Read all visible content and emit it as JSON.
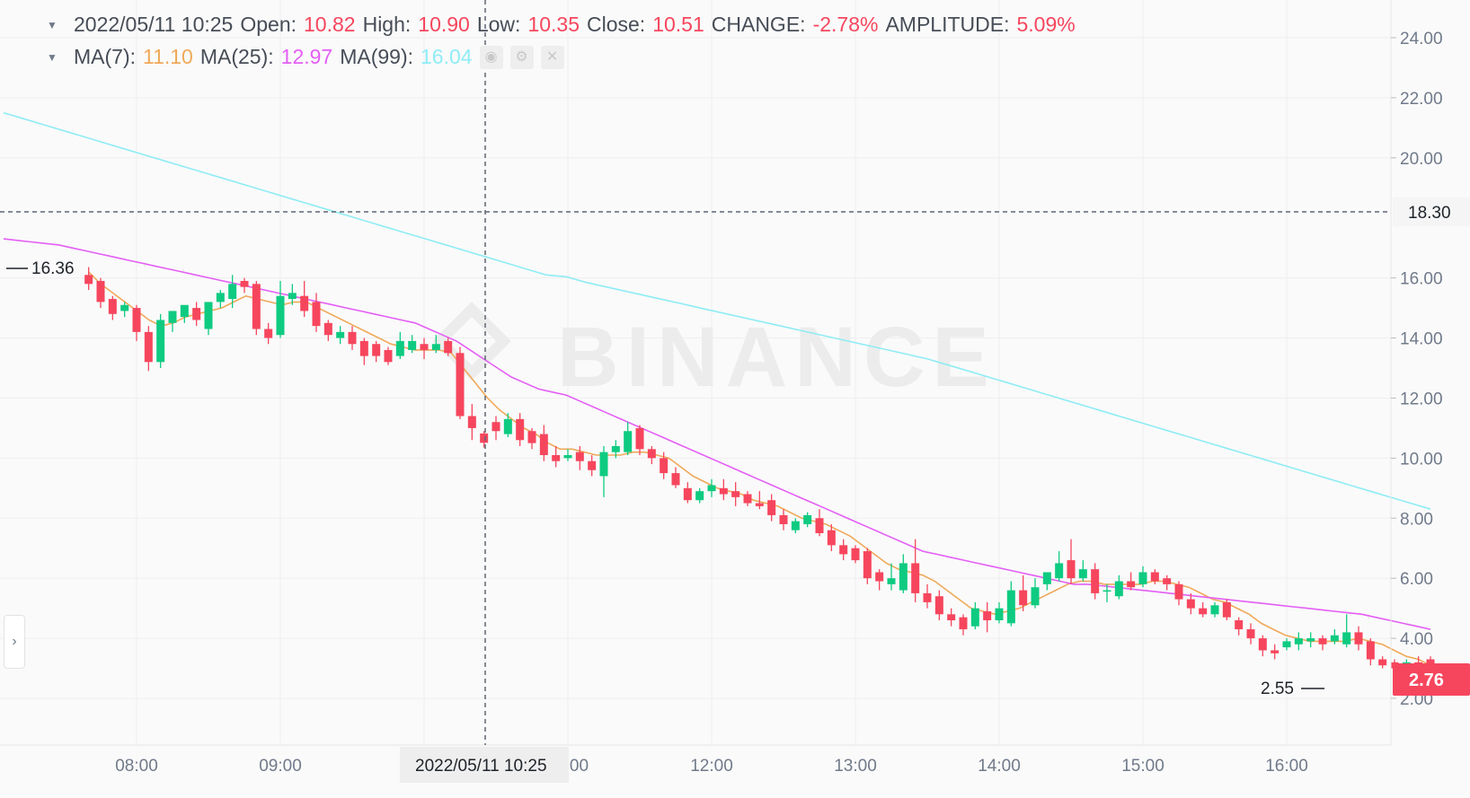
{
  "legend": {
    "datetime": "2022/05/11 10:25",
    "open_label": "Open:",
    "open": "10.82",
    "high_label": "High:",
    "high": "10.90",
    "low_label": "Low:",
    "low": "10.35",
    "close_label": "Close:",
    "close": "10.51",
    "change_label": "CHANGE:",
    "change": "-2.78%",
    "amplitude_label": "AMPLITUDE:",
    "amplitude": "5.09%",
    "ma7_label": "MA(7):",
    "ma7": "11.10",
    "ma25_label": "MA(25):",
    "ma25": "12.97",
    "ma99_label": "MA(99):",
    "ma99": "16.04"
  },
  "watermark": "BINANCE",
  "crosshair": {
    "price_label": "18.30",
    "time_label": "2022/05/11 10:25"
  },
  "last_price_label": "2.76",
  "high_marker": "16.36",
  "low_marker": "2.55",
  "colors": {
    "up": "#0ecb81",
    "down": "#f6465d",
    "ma7": "#f0a95a",
    "ma25": "#e45ef5",
    "ma99": "#8fecf5",
    "grid": "#efefef",
    "axis_text": "#707a8a",
    "last_price_bg": "#f6465d"
  },
  "chart_data": {
    "type": "candlestick",
    "title": "",
    "y_ticks": [
      "2.00",
      "4.00",
      "6.00",
      "8.00",
      "10.00",
      "12.00",
      "14.00",
      "16.00",
      "20.00",
      "22.00",
      "24.00"
    ],
    "x_ticks": [
      "08:00",
      "09:00",
      "11:00",
      "12:00",
      "13:00",
      "14:00",
      "15:00",
      "16:00"
    ],
    "ylim": [
      0.6,
      25.4
    ],
    "interval_minutes": 5,
    "candles": [
      {
        "t": "07:40",
        "o": 16.1,
        "h": 16.36,
        "c": 15.8,
        "l": 15.6
      },
      {
        "t": "07:45",
        "o": 15.9,
        "h": 16.0,
        "c": 15.2,
        "l": 15.0
      },
      {
        "t": "07:50",
        "o": 15.3,
        "h": 15.4,
        "c": 14.8,
        "l": 14.6
      },
      {
        "t": "07:55",
        "o": 14.9,
        "h": 15.2,
        "c": 15.1,
        "l": 14.7
      },
      {
        "t": "08:00",
        "o": 15.0,
        "h": 15.1,
        "c": 14.2,
        "l": 13.9
      },
      {
        "t": "08:05",
        "o": 14.2,
        "h": 14.4,
        "c": 13.2,
        "l": 12.9
      },
      {
        "t": "08:10",
        "o": 13.2,
        "h": 14.8,
        "c": 14.6,
        "l": 13.0
      },
      {
        "t": "08:15",
        "o": 14.5,
        "h": 14.9,
        "c": 14.9,
        "l": 14.2
      },
      {
        "t": "08:20",
        "o": 14.7,
        "h": 15.0,
        "c": 15.1,
        "l": 14.5
      },
      {
        "t": "08:25",
        "o": 15.0,
        "h": 15.2,
        "c": 14.6,
        "l": 14.4
      },
      {
        "t": "08:30",
        "o": 14.3,
        "h": 15.1,
        "c": 15.2,
        "l": 14.1
      },
      {
        "t": "08:35",
        "o": 15.2,
        "h": 15.6,
        "c": 15.5,
        "l": 15.0
      },
      {
        "t": "08:40",
        "o": 15.3,
        "h": 16.1,
        "c": 15.8,
        "l": 15.0
      },
      {
        "t": "08:45",
        "o": 15.9,
        "h": 16.0,
        "c": 15.7,
        "l": 15.5
      },
      {
        "t": "08:50",
        "o": 15.8,
        "h": 15.9,
        "c": 14.3,
        "l": 14.1
      },
      {
        "t": "08:55",
        "o": 14.3,
        "h": 14.5,
        "c": 14.0,
        "l": 13.8
      },
      {
        "t": "09:00",
        "o": 14.1,
        "h": 15.9,
        "c": 15.4,
        "l": 14.0
      },
      {
        "t": "09:05",
        "o": 15.3,
        "h": 15.8,
        "c": 15.5,
        "l": 15.1
      },
      {
        "t": "09:10",
        "o": 15.4,
        "h": 15.9,
        "c": 14.9,
        "l": 14.7
      },
      {
        "t": "09:15",
        "o": 15.2,
        "h": 15.5,
        "c": 14.4,
        "l": 14.2
      },
      {
        "t": "09:20",
        "o": 14.5,
        "h": 14.6,
        "c": 14.1,
        "l": 13.9
      },
      {
        "t": "09:25",
        "o": 14.0,
        "h": 14.4,
        "c": 14.2,
        "l": 13.8
      },
      {
        "t": "09:30",
        "o": 14.2,
        "h": 14.4,
        "c": 13.8,
        "l": 13.6
      },
      {
        "t": "09:35",
        "o": 13.9,
        "h": 14.0,
        "c": 13.4,
        "l": 13.1
      },
      {
        "t": "09:40",
        "o": 13.8,
        "h": 13.9,
        "c": 13.4,
        "l": 13.2
      },
      {
        "t": "09:45",
        "o": 13.6,
        "h": 13.7,
        "c": 13.2,
        "l": 13.1
      },
      {
        "t": "09:50",
        "o": 13.4,
        "h": 14.2,
        "c": 13.9,
        "l": 13.3
      },
      {
        "t": "09:55",
        "o": 13.6,
        "h": 14.1,
        "c": 13.9,
        "l": 13.5
      },
      {
        "t": "10:00",
        "o": 13.8,
        "h": 14.0,
        "c": 13.6,
        "l": 13.3
      },
      {
        "t": "10:05",
        "o": 13.6,
        "h": 14.1,
        "c": 13.8,
        "l": 13.5
      },
      {
        "t": "10:10",
        "o": 13.9,
        "h": 14.0,
        "c": 13.5,
        "l": 13.4
      },
      {
        "t": "10:15",
        "o": 13.5,
        "h": 13.7,
        "c": 11.4,
        "l": 11.3
      },
      {
        "t": "10:20",
        "o": 11.4,
        "h": 11.8,
        "c": 11.0,
        "l": 10.6
      },
      {
        "t": "10:25",
        "o": 10.82,
        "h": 10.9,
        "c": 10.51,
        "l": 10.35
      },
      {
        "t": "10:30",
        "o": 11.2,
        "h": 11.4,
        "c": 10.9,
        "l": 10.6
      },
      {
        "t": "10:35",
        "o": 10.8,
        "h": 11.5,
        "c": 11.3,
        "l": 10.7
      },
      {
        "t": "10:40",
        "o": 11.3,
        "h": 11.5,
        "c": 10.6,
        "l": 10.4
      },
      {
        "t": "10:45",
        "o": 10.9,
        "h": 11.0,
        "c": 10.5,
        "l": 10.3
      },
      {
        "t": "10:50",
        "o": 10.8,
        "h": 11.1,
        "c": 10.1,
        "l": 9.9
      },
      {
        "t": "10:55",
        "o": 10.1,
        "h": 10.4,
        "c": 9.9,
        "l": 9.7
      },
      {
        "t": "11:00",
        "o": 10.0,
        "h": 10.3,
        "c": 10.1,
        "l": 9.9
      },
      {
        "t": "11:05",
        "o": 10.2,
        "h": 10.4,
        "c": 9.9,
        "l": 9.6
      },
      {
        "t": "11:10",
        "o": 9.9,
        "h": 10.1,
        "c": 9.6,
        "l": 9.4
      },
      {
        "t": "11:15",
        "o": 9.4,
        "h": 10.4,
        "c": 10.2,
        "l": 8.7
      },
      {
        "t": "11:20",
        "o": 10.2,
        "h": 10.6,
        "c": 10.4,
        "l": 10.0
      },
      {
        "t": "11:25",
        "o": 10.2,
        "h": 11.2,
        "c": 10.9,
        "l": 10.1
      },
      {
        "t": "11:30",
        "o": 11.0,
        "h": 11.1,
        "c": 10.3,
        "l": 10.1
      },
      {
        "t": "11:35",
        "o": 10.3,
        "h": 10.4,
        "c": 10.0,
        "l": 9.8
      },
      {
        "t": "11:40",
        "o": 10.0,
        "h": 10.2,
        "c": 9.5,
        "l": 9.3
      },
      {
        "t": "11:45",
        "o": 9.5,
        "h": 9.7,
        "c": 9.1,
        "l": 9.0
      },
      {
        "t": "11:50",
        "o": 9.0,
        "h": 9.2,
        "c": 8.6,
        "l": 8.5
      },
      {
        "t": "11:55",
        "o": 8.6,
        "h": 9.0,
        "c": 8.9,
        "l": 8.5
      },
      {
        "t": "12:00",
        "o": 8.9,
        "h": 9.3,
        "c": 9.1,
        "l": 8.7
      },
      {
        "t": "12:05",
        "o": 9.0,
        "h": 9.3,
        "c": 8.8,
        "l": 8.6
      },
      {
        "t": "12:10",
        "o": 8.9,
        "h": 9.2,
        "c": 8.7,
        "l": 8.4
      },
      {
        "t": "12:15",
        "o": 8.8,
        "h": 8.9,
        "c": 8.5,
        "l": 8.4
      },
      {
        "t": "12:20",
        "o": 8.5,
        "h": 8.9,
        "c": 8.4,
        "l": 8.3
      },
      {
        "t": "12:25",
        "o": 8.6,
        "h": 8.8,
        "c": 8.1,
        "l": 7.9
      },
      {
        "t": "12:30",
        "o": 8.1,
        "h": 8.3,
        "c": 7.8,
        "l": 7.6
      },
      {
        "t": "12:35",
        "o": 7.6,
        "h": 8.0,
        "c": 7.9,
        "l": 7.5
      },
      {
        "t": "12:40",
        "o": 7.8,
        "h": 8.2,
        "c": 8.1,
        "l": 7.7
      },
      {
        "t": "12:45",
        "o": 8.0,
        "h": 8.3,
        "c": 7.5,
        "l": 7.4
      },
      {
        "t": "12:50",
        "o": 7.6,
        "h": 7.8,
        "c": 7.1,
        "l": 6.9
      },
      {
        "t": "12:55",
        "o": 7.1,
        "h": 7.3,
        "c": 6.8,
        "l": 6.6
      },
      {
        "t": "13:00",
        "o": 7.0,
        "h": 7.1,
        "c": 6.6,
        "l": 6.5
      },
      {
        "t": "13:05",
        "o": 6.9,
        "h": 7.0,
        "c": 6.0,
        "l": 5.8
      },
      {
        "t": "13:10",
        "o": 6.2,
        "h": 6.3,
        "c": 5.9,
        "l": 5.6
      },
      {
        "t": "13:15",
        "o": 5.8,
        "h": 6.5,
        "c": 6.0,
        "l": 5.6
      },
      {
        "t": "13:20",
        "o": 5.6,
        "h": 6.8,
        "c": 6.5,
        "l": 5.5
      },
      {
        "t": "13:25",
        "o": 6.5,
        "h": 7.3,
        "c": 5.5,
        "l": 5.2
      },
      {
        "t": "13:30",
        "o": 5.5,
        "h": 5.8,
        "c": 5.2,
        "l": 5.0
      },
      {
        "t": "13:35",
        "o": 5.4,
        "h": 5.6,
        "c": 4.8,
        "l": 4.6
      },
      {
        "t": "13:40",
        "o": 4.8,
        "h": 5.0,
        "c": 4.6,
        "l": 4.4
      },
      {
        "t": "13:45",
        "o": 4.7,
        "h": 4.8,
        "c": 4.3,
        "l": 4.1
      },
      {
        "t": "13:50",
        "o": 4.4,
        "h": 5.2,
        "c": 5.0,
        "l": 4.3
      },
      {
        "t": "13:55",
        "o": 4.9,
        "h": 5.2,
        "c": 4.6,
        "l": 4.2
      },
      {
        "t": "14:00",
        "o": 4.6,
        "h": 5.2,
        "c": 5.0,
        "l": 4.5
      },
      {
        "t": "14:05",
        "o": 4.5,
        "h": 5.9,
        "c": 5.6,
        "l": 4.4
      },
      {
        "t": "14:10",
        "o": 5.6,
        "h": 6.1,
        "c": 5.1,
        "l": 4.9
      },
      {
        "t": "14:15",
        "o": 5.1,
        "h": 6.0,
        "c": 5.7,
        "l": 5.0
      },
      {
        "t": "14:20",
        "o": 5.8,
        "h": 6.2,
        "c": 6.2,
        "l": 5.6
      },
      {
        "t": "14:25",
        "o": 6.0,
        "h": 6.9,
        "c": 6.5,
        "l": 5.9
      },
      {
        "t": "14:30",
        "o": 6.6,
        "h": 7.3,
        "c": 6.0,
        "l": 5.8
      },
      {
        "t": "14:35",
        "o": 6.0,
        "h": 6.6,
        "c": 6.3,
        "l": 5.9
      },
      {
        "t": "14:40",
        "o": 6.3,
        "h": 6.5,
        "c": 5.5,
        "l": 5.3
      },
      {
        "t": "14:45",
        "o": 5.6,
        "h": 5.8,
        "c": 5.6,
        "l": 5.2
      },
      {
        "t": "14:50",
        "o": 5.4,
        "h": 6.1,
        "c": 5.9,
        "l": 5.3
      },
      {
        "t": "14:55",
        "o": 5.9,
        "h": 6.2,
        "c": 5.7,
        "l": 5.6
      },
      {
        "t": "15:00",
        "o": 5.8,
        "h": 6.4,
        "c": 6.2,
        "l": 5.7
      },
      {
        "t": "15:05",
        "o": 6.2,
        "h": 6.3,
        "c": 5.9,
        "l": 5.8
      },
      {
        "t": "15:10",
        "o": 6.0,
        "h": 6.1,
        "c": 5.8,
        "l": 5.6
      },
      {
        "t": "15:15",
        "o": 5.8,
        "h": 5.9,
        "c": 5.3,
        "l": 5.1
      },
      {
        "t": "15:20",
        "o": 5.3,
        "h": 5.5,
        "c": 5.0,
        "l": 4.8
      },
      {
        "t": "15:25",
        "o": 5.0,
        "h": 5.2,
        "c": 4.8,
        "l": 4.7
      },
      {
        "t": "15:30",
        "o": 4.8,
        "h": 5.2,
        "c": 5.1,
        "l": 4.7
      },
      {
        "t": "15:35",
        "o": 5.2,
        "h": 5.3,
        "c": 4.7,
        "l": 4.6
      },
      {
        "t": "15:40",
        "o": 4.6,
        "h": 4.7,
        "c": 4.3,
        "l": 4.1
      },
      {
        "t": "15:45",
        "o": 4.3,
        "h": 4.5,
        "c": 4.0,
        "l": 3.8
      },
      {
        "t": "15:50",
        "o": 4.0,
        "h": 4.1,
        "c": 3.6,
        "l": 3.4
      },
      {
        "t": "15:55",
        "o": 3.6,
        "h": 3.8,
        "c": 3.5,
        "l": 3.3
      },
      {
        "t": "16:00",
        "o": 3.7,
        "h": 4.0,
        "c": 3.9,
        "l": 3.6
      },
      {
        "t": "16:05",
        "o": 3.8,
        "h": 4.2,
        "c": 4.0,
        "l": 3.6
      },
      {
        "t": "16:10",
        "o": 3.9,
        "h": 4.2,
        "c": 4.0,
        "l": 3.7
      },
      {
        "t": "16:15",
        "o": 4.0,
        "h": 4.1,
        "c": 3.8,
        "l": 3.6
      },
      {
        "t": "16:20",
        "o": 3.9,
        "h": 4.3,
        "c": 4.1,
        "l": 3.8
      },
      {
        "t": "16:25",
        "o": 3.8,
        "h": 4.8,
        "c": 4.2,
        "l": 3.7
      },
      {
        "t": "16:30",
        "o": 4.2,
        "h": 4.4,
        "c": 3.8,
        "l": 3.6
      },
      {
        "t": "16:35",
        "o": 3.9,
        "h": 4.0,
        "c": 3.3,
        "l": 3.1
      },
      {
        "t": "16:40",
        "o": 3.3,
        "h": 3.4,
        "c": 3.1,
        "l": 3.0
      },
      {
        "t": "16:45",
        "o": 3.2,
        "h": 3.3,
        "c": 3.0,
        "l": 2.9
      },
      {
        "t": "16:50",
        "o": 3.0,
        "h": 3.3,
        "c": 3.2,
        "l": 2.9
      },
      {
        "t": "16:55",
        "o": 3.2,
        "h": 3.4,
        "c": 3.0,
        "l": 2.9
      },
      {
        "t": "17:00",
        "o": 3.3,
        "h": 3.4,
        "c": 2.76,
        "l": 2.55
      }
    ],
    "series": [
      {
        "name": "MA(7)",
        "type": "line",
        "values": [
          16.2,
          15.8,
          15.5,
          15.2,
          14.9,
          14.6,
          14.4,
          14.5,
          14.7,
          14.8,
          14.9,
          15.0,
          15.2,
          15.4,
          15.3,
          15.2,
          15.1,
          15.2,
          15.2,
          15.0,
          14.8,
          14.6,
          14.4,
          14.2,
          14.0,
          13.8,
          13.7,
          13.6,
          13.6,
          13.6,
          13.5,
          13.0,
          12.5,
          12.0,
          11.6,
          11.3,
          11.0,
          10.8,
          10.5,
          10.3,
          10.3,
          10.2,
          10.1,
          10.1,
          10.1,
          10.2,
          10.2,
          10.1,
          10.0,
          9.7,
          9.4,
          9.2,
          9.0,
          8.9,
          8.8,
          8.6,
          8.5,
          8.4,
          8.2,
          8.0,
          7.9,
          7.8,
          7.6,
          7.4,
          7.1,
          6.8,
          6.5,
          6.3,
          6.2,
          6.1,
          5.9,
          5.6,
          5.3,
          5.0,
          4.9,
          4.8,
          4.9,
          5.0,
          5.2,
          5.4,
          5.6,
          5.8,
          5.9,
          5.9,
          5.8,
          5.8,
          5.8,
          5.8,
          5.9,
          5.9,
          5.8,
          5.7,
          5.5,
          5.3,
          5.2,
          5.0,
          4.8,
          4.5,
          4.3,
          4.1,
          4.0,
          3.9,
          3.9,
          3.9,
          3.9,
          4.0,
          3.9,
          3.8,
          3.6,
          3.4,
          3.3,
          3.1
        ]
      },
      {
        "name": "MA(25)",
        "type": "line",
        "values": [
          17.3,
          17.25,
          17.2,
          17.15,
          17.1,
          17.0,
          16.9,
          16.8,
          16.7,
          16.6,
          16.5,
          16.4,
          16.3,
          16.2,
          16.1,
          16.0,
          15.9,
          15.8,
          15.7,
          15.6,
          15.5,
          15.4,
          15.3,
          15.2,
          15.1,
          15.0,
          14.9,
          14.8,
          14.7,
          14.6,
          14.5,
          14.3,
          14.1,
          13.9,
          13.6,
          13.3,
          13.0,
          12.7,
          12.5,
          12.3,
          12.2,
          12.1,
          11.9,
          11.7,
          11.5,
          11.3,
          11.1,
          10.9,
          10.7,
          10.5,
          10.3,
          10.1,
          9.9,
          9.7,
          9.5,
          9.3,
          9.1,
          8.9,
          8.7,
          8.5,
          8.3,
          8.1,
          7.9,
          7.7,
          7.5,
          7.3,
          7.1,
          6.9,
          6.8,
          6.7,
          6.6,
          6.5,
          6.4,
          6.3,
          6.2,
          6.1,
          6.0,
          5.9,
          5.8,
          5.8,
          5.75,
          5.7,
          5.65,
          5.6,
          5.55,
          5.5,
          5.45,
          5.4,
          5.35,
          5.3,
          5.25,
          5.2,
          5.15,
          5.1,
          5.05,
          5.0,
          4.95,
          4.9,
          4.85,
          4.8,
          4.7,
          4.6,
          4.5,
          4.4,
          4.3
        ]
      },
      {
        "name": "MA(99)",
        "type": "line",
        "values": [
          21.5,
          21.3,
          21.1,
          20.9,
          20.7,
          20.5,
          20.3,
          20.1,
          19.9,
          19.7,
          19.5,
          19.3,
          19.1,
          18.9,
          18.7,
          18.5,
          18.3,
          18.1,
          17.9,
          17.7,
          17.5,
          17.3,
          17.1,
          16.9,
          16.7,
          16.5,
          16.3,
          16.1,
          16.04,
          15.85,
          15.7,
          15.55,
          15.4,
          15.25,
          15.1,
          14.95,
          14.8,
          14.65,
          14.5,
          14.35,
          14.2,
          14.05,
          13.9,
          13.75,
          13.6,
          13.45,
          13.3,
          13.1,
          12.9,
          12.7,
          12.5,
          12.3,
          12.1,
          11.9,
          11.7,
          11.5,
          11.3,
          11.1,
          10.9,
          10.7,
          10.5,
          10.3,
          10.1,
          9.9,
          9.7,
          9.5,
          9.3,
          9.1,
          8.9,
          8.7,
          8.5,
          8.3
        ]
      }
    ]
  }
}
